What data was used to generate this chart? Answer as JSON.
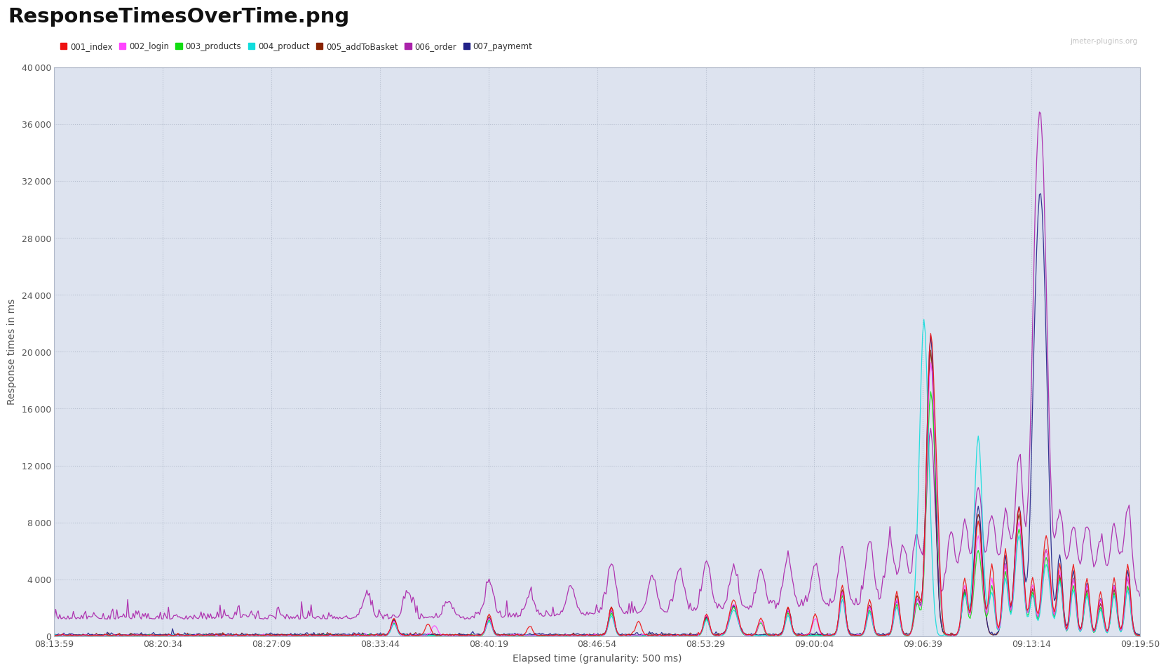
{
  "title": "ResponseTimesOverTime.png",
  "watermark": "jmeter-plugins.org",
  "xlabel": "Elapsed time (granularity: 500 ms)",
  "ylabel": "Response times in ms",
  "ylim": [
    0,
    40000
  ],
  "yticks": [
    0,
    4000,
    8000,
    12000,
    16000,
    20000,
    24000,
    28000,
    32000,
    36000,
    40000
  ],
  "xtick_labels": [
    "08:13:59",
    "08:20:34",
    "08:27:09",
    "08:33:44",
    "08:40:19",
    "08:46:54",
    "08:53:29",
    "09:00:04",
    "09:06:39",
    "09:13:14",
    "09:19:50"
  ],
  "background_color": "#dde3ef",
  "outer_bg": "#f5f5f5",
  "panel_bg": "#ffffff",
  "series": [
    {
      "label": "001_index",
      "color": "#ee1111"
    },
    {
      "label": "002_login",
      "color": "#ff44ff"
    },
    {
      "label": "003_products",
      "color": "#11dd11"
    },
    {
      "label": "004_product",
      "color": "#11dddd"
    },
    {
      "label": "005_addToBasket",
      "color": "#882200"
    },
    {
      "label": "006_order",
      "color": "#aa22aa"
    },
    {
      "label": "007_paymemt",
      "color": "#222288"
    }
  ],
  "n_points": 800
}
